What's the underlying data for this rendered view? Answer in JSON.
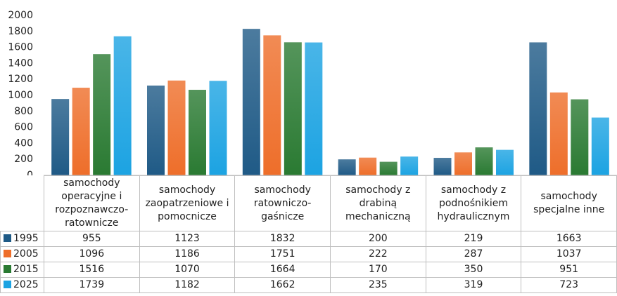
{
  "chart_data": {
    "type": "bar",
    "categories": [
      "samochody operacyjne i rozpoznawczo-ratownicze",
      "samochody zaopatrzeniowe i pomocnicze",
      "samochody ratowniczo-gaśnicze",
      "samochody z drabiną mechaniczną",
      "samochody z podnośnikiem hydraulicznym",
      "samochody specjalne inne"
    ],
    "series": [
      {
        "name": "1995",
        "color": "#1f5a86",
        "values": [
          955,
          1123,
          1832,
          200,
          219,
          1663
        ]
      },
      {
        "name": "2005",
        "color": "#ee6e2a",
        "values": [
          1096,
          1186,
          1751,
          222,
          287,
          1037
        ]
      },
      {
        "name": "2015",
        "color": "#2a7a32",
        "values": [
          1516,
          1070,
          1664,
          170,
          350,
          951
        ]
      },
      {
        "name": "2025",
        "color": "#1ca3e2",
        "values": [
          1739,
          1182,
          1662,
          235,
          319,
          723
        ]
      }
    ],
    "ylim": [
      0,
      2000
    ],
    "yticks": [
      0,
      200,
      400,
      600,
      800,
      1000,
      1200,
      1400,
      1600,
      1800,
      2000
    ],
    "grid": false
  }
}
